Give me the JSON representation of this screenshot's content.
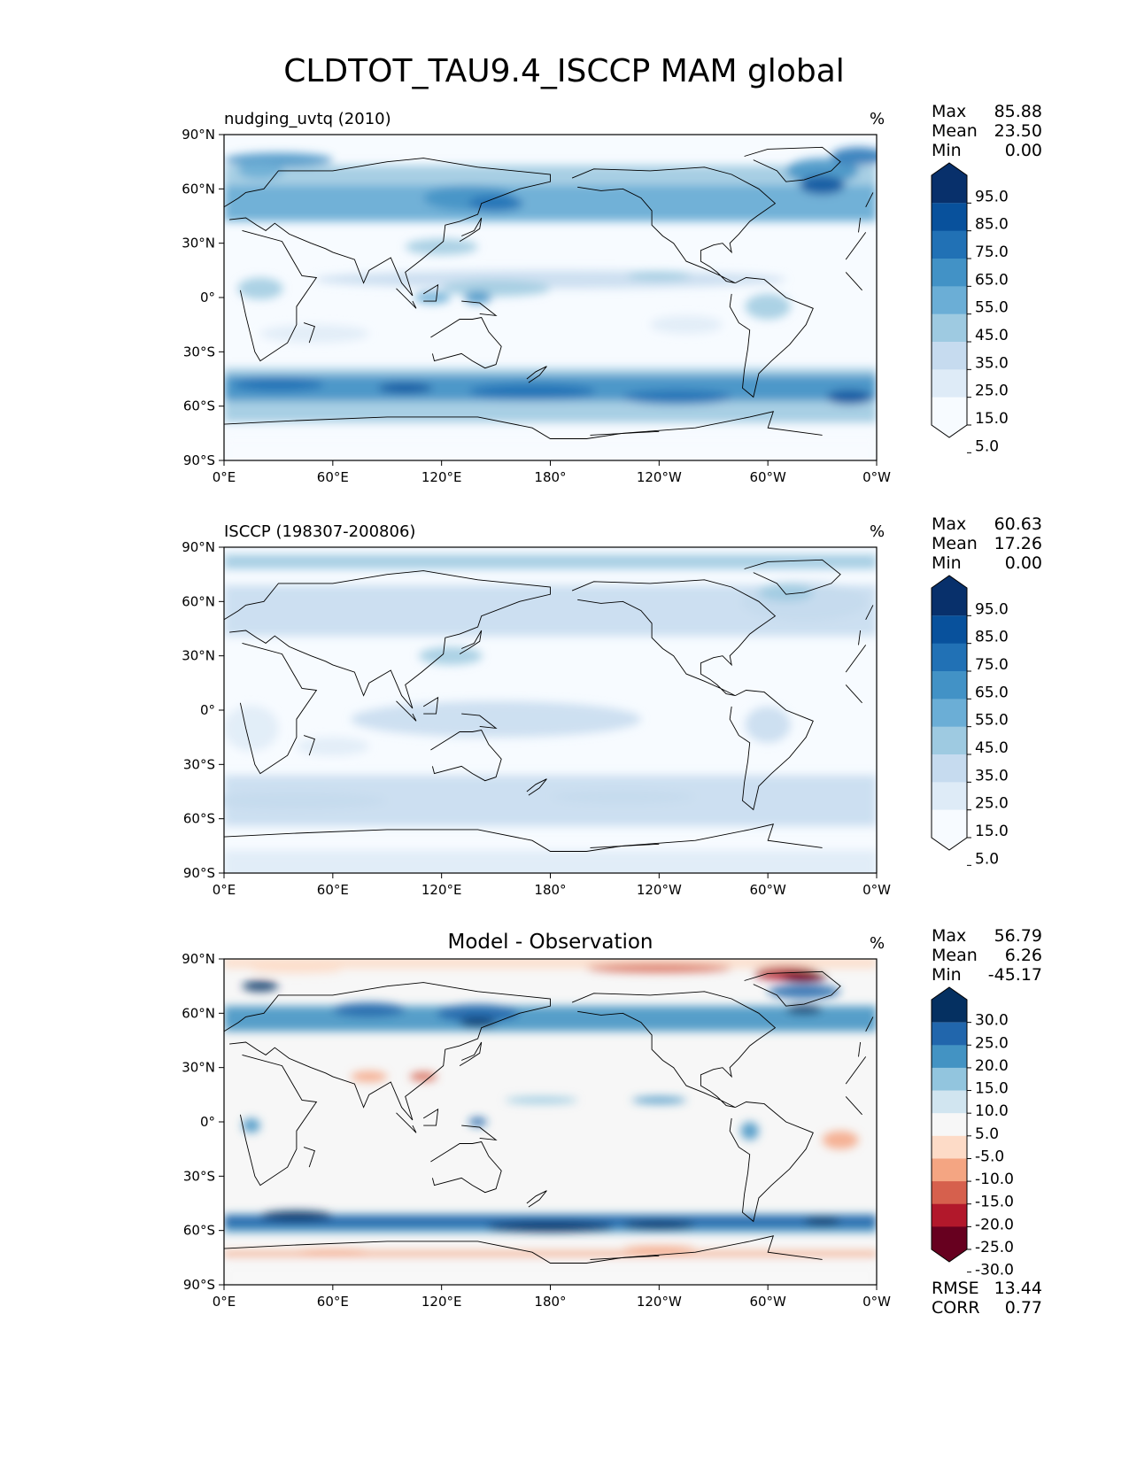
{
  "figure_title": "CLDTOT_TAU9.4_ISCCP MAM global",
  "colors": {
    "seq": [
      "#f7fbff",
      "#deebf7",
      "#c6dbef",
      "#9ecae1",
      "#6baed6",
      "#4292c6",
      "#2171b5",
      "#08519c",
      "#08306b"
    ],
    "div": [
      "#67001f",
      "#b2182b",
      "#d6604d",
      "#f4a582",
      "#fddbc7",
      "#f7f7f7",
      "#d1e5f0",
      "#92c5de",
      "#4393c3",
      "#2166ac",
      "#053061"
    ]
  },
  "chart_data": [
    {
      "type": "heatmap",
      "panel": "model",
      "title_left": "nudging_uvtq (2010)",
      "title_center": "",
      "units": "%",
      "stats": [
        {
          "label": "Max",
          "value": "85.88"
        },
        {
          "label": "Mean",
          "value": "23.50"
        },
        {
          "label": "Min",
          "value": "0.00"
        }
      ],
      "colorbar_levels": [
        0,
        10,
        20,
        30,
        40,
        50,
        60,
        70,
        80,
        90,
        100
      ],
      "colorbar_labels": [
        "95.0",
        "85.0",
        "75.0",
        "65.0",
        "55.0",
        "45.0",
        "35.0",
        "25.0",
        "15.0",
        "5.0"
      ],
      "colorbar_extend": "both",
      "x_ticks": [
        "0°E",
        "60°E",
        "120°E",
        "180°",
        "120°W",
        "60°W",
        "0°W"
      ],
      "y_ticks": [
        "90°N",
        "60°N",
        "30°N",
        "0°",
        "30°S",
        "60°S",
        "90°S"
      ],
      "xlim": [
        0,
        360
      ],
      "ylim": [
        -90,
        90
      ]
    },
    {
      "type": "heatmap",
      "panel": "obs",
      "title_left": "ISCCP (198307-200806)",
      "title_center": "",
      "units": "%",
      "stats": [
        {
          "label": "Max",
          "value": "60.63"
        },
        {
          "label": "Mean",
          "value": "17.26"
        },
        {
          "label": "Min",
          "value": "0.00"
        }
      ],
      "colorbar_levels": [
        0,
        10,
        20,
        30,
        40,
        50,
        60,
        70,
        80,
        90,
        100
      ],
      "colorbar_labels": [
        "95.0",
        "85.0",
        "75.0",
        "65.0",
        "55.0",
        "45.0",
        "35.0",
        "25.0",
        "15.0",
        "5.0"
      ],
      "colorbar_extend": "both",
      "x_ticks": [
        "0°E",
        "60°E",
        "120°E",
        "180°",
        "120°W",
        "60°W",
        "0°W"
      ],
      "y_ticks": [
        "90°N",
        "60°N",
        "30°N",
        "0°",
        "30°S",
        "60°S",
        "90°S"
      ],
      "xlim": [
        0,
        360
      ],
      "ylim": [
        -90,
        90
      ]
    },
    {
      "type": "heatmap",
      "panel": "diff",
      "title_left": "",
      "title_center": "Model - Observation",
      "units": "%",
      "stats": [
        {
          "label": "Max",
          "value": "56.79"
        },
        {
          "label": "Mean",
          "value": "6.26"
        },
        {
          "label": "Min",
          "value": "-45.17"
        }
      ],
      "bottom_stats": [
        {
          "label": "RMSE",
          "value": "13.44"
        },
        {
          "label": "CORR",
          "value": "0.77"
        }
      ],
      "colorbar_levels": [
        -30,
        -25,
        -20,
        -15,
        -10,
        -5,
        5,
        10,
        15,
        20,
        25,
        30
      ],
      "colorbar_labels": [
        "30.0",
        "25.0",
        "20.0",
        "15.0",
        "10.0",
        "5.0",
        "-5.0",
        "-10.0",
        "-15.0",
        "-20.0",
        "-25.0",
        "-30.0"
      ],
      "colorbar_extend": "both",
      "x_ticks": [
        "0°E",
        "60°E",
        "120°E",
        "180°",
        "120°W",
        "60°W",
        "0°W"
      ],
      "y_ticks": [
        "90°N",
        "60°N",
        "30°N",
        "0°",
        "30°S",
        "60°S",
        "90°S"
      ],
      "xlim": [
        0,
        360
      ],
      "ylim": [
        -90,
        90
      ]
    }
  ]
}
